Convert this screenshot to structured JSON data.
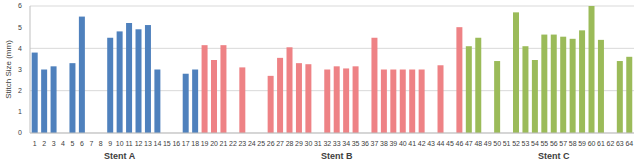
{
  "chart_data": {
    "type": "bar",
    "y_label": "Stitch Size (mm)",
    "categories": [
      "1",
      "2",
      "3",
      "4",
      "5",
      "6",
      "7",
      "8",
      "9",
      "10",
      "11",
      "12",
      "13",
      "14",
      "15",
      "16",
      "17",
      "18",
      "19",
      "20",
      "21",
      "22",
      "23",
      "24",
      "25",
      "26",
      "27",
      "28",
      "29",
      "30",
      "31",
      "32",
      "33",
      "34",
      "35",
      "36",
      "37",
      "38",
      "39",
      "40",
      "41",
      "42",
      "43",
      "44",
      "45",
      "46",
      "47",
      "48",
      "49",
      "50",
      "51",
      "52",
      "53",
      "54",
      "55",
      "56",
      "57",
      "58",
      "59",
      "60",
      "61",
      "62",
      "63",
      "64"
    ],
    "stacked": true,
    "grid": true,
    "ylim": [
      0,
      6
    ],
    "yticks": [
      0,
      1,
      2,
      3,
      4,
      5,
      6
    ],
    "series": [
      {
        "name": "Stent A",
        "color": "#4f81bd",
        "values": [
          3.8,
          3.0,
          3.15,
          null,
          3.3,
          5.5,
          null,
          null,
          4.5,
          4.8,
          5.2,
          4.9,
          5.1,
          3.0,
          null,
          null,
          2.8,
          3.0,
          null,
          null,
          null,
          null,
          null,
          null,
          null,
          null,
          null,
          null,
          null,
          null,
          null,
          null,
          null,
          null,
          null,
          null,
          null,
          null,
          null,
          null,
          null,
          null,
          null,
          null,
          null,
          null,
          null,
          null,
          null,
          null,
          null,
          null,
          null,
          null,
          null,
          null,
          null,
          null,
          null,
          null,
          null,
          null,
          null,
          null
        ]
      },
      {
        "name": "Stent B",
        "color": "#ee8285",
        "values": [
          null,
          null,
          null,
          null,
          null,
          null,
          null,
          null,
          null,
          null,
          null,
          null,
          null,
          null,
          null,
          null,
          null,
          null,
          4.15,
          3.45,
          4.15,
          null,
          3.1,
          null,
          null,
          2.7,
          3.55,
          4.05,
          3.3,
          3.25,
          null,
          3.0,
          3.15,
          3.05,
          3.15,
          null,
          4.5,
          3.0,
          3.0,
          3.0,
          3.0,
          3.0,
          null,
          3.2,
          null,
          5.0,
          null,
          null,
          null,
          null,
          null,
          null,
          null,
          null,
          null,
          null,
          null,
          null,
          null,
          null,
          null,
          null,
          null,
          null
        ]
      },
      {
        "name": "Stent C",
        "color": "#9bbb59",
        "values": [
          null,
          null,
          null,
          null,
          null,
          null,
          null,
          null,
          null,
          null,
          null,
          null,
          null,
          null,
          null,
          null,
          null,
          null,
          null,
          null,
          null,
          null,
          null,
          null,
          null,
          null,
          null,
          null,
          null,
          null,
          null,
          null,
          null,
          null,
          null,
          null,
          null,
          null,
          null,
          null,
          null,
          null,
          null,
          null,
          null,
          null,
          4.1,
          4.5,
          null,
          3.4,
          null,
          5.7,
          4.1,
          3.45,
          4.65,
          4.65,
          4.55,
          4.45,
          4.85,
          6.0,
          4.4,
          null,
          3.4,
          3.6
        ]
      }
    ]
  }
}
